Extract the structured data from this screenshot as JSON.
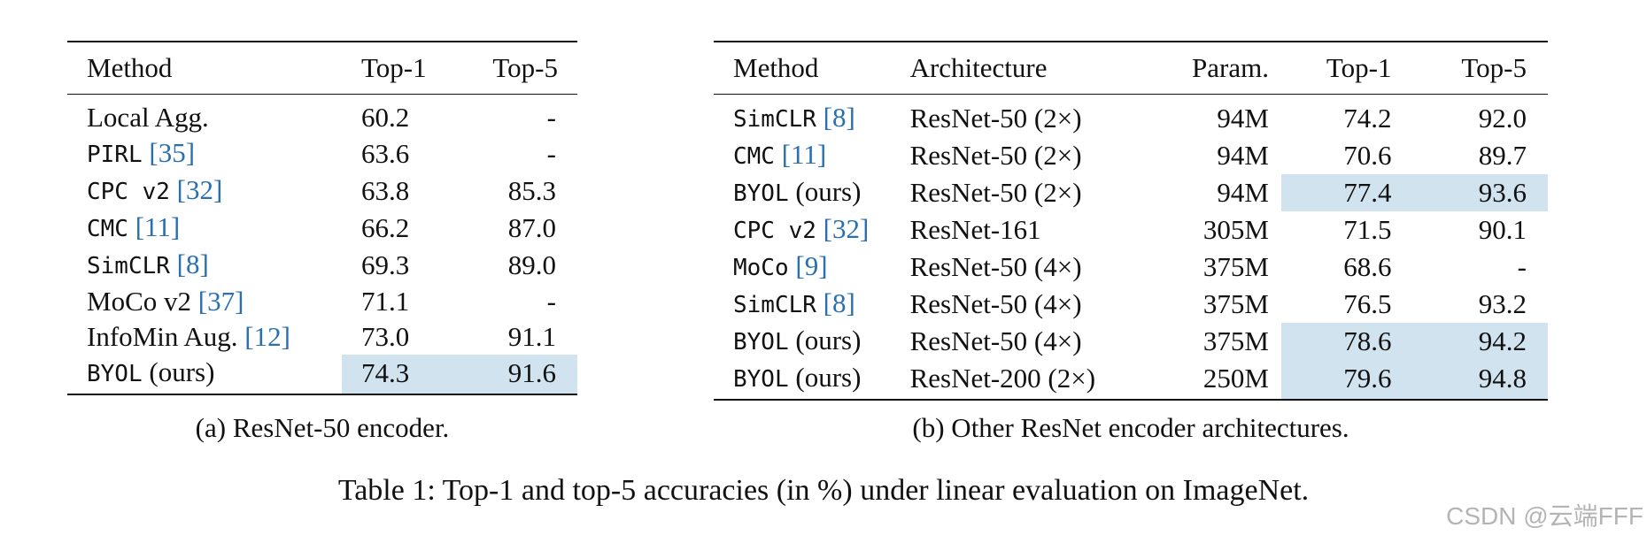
{
  "table_a": {
    "headers": [
      "Method",
      "Top-1",
      "Top-5"
    ],
    "rows": [
      {
        "method": "Local Agg.",
        "mono": false,
        "cite": "",
        "top1": "60.2",
        "top5": "-",
        "highlight": false,
        "bold": false
      },
      {
        "method": "PIRL",
        "mono": true,
        "cite": "[35]",
        "top1": "63.6",
        "top5": "-",
        "highlight": false,
        "bold": false
      },
      {
        "method": "CPC v2",
        "mono": true,
        "cite": "[32]",
        "top1": "63.8",
        "top5": "85.3",
        "highlight": false,
        "bold": false
      },
      {
        "method": "CMC",
        "mono": true,
        "cite": "[11]",
        "top1": "66.2",
        "top5": "87.0",
        "highlight": false,
        "bold": false
      },
      {
        "method": "SimCLR",
        "mono": true,
        "cite": "[8]",
        "top1": "69.3",
        "top5": "89.0",
        "highlight": false,
        "bold": false
      },
      {
        "method": "MoCo v2",
        "mono": false,
        "cite": "[37]",
        "top1": "71.1",
        "top5": "-",
        "highlight": false,
        "bold": false
      },
      {
        "method": "InfoMin Aug.",
        "mono": false,
        "cite": "[12]",
        "top1": "73.0",
        "top5": "91.1",
        "highlight": false,
        "bold": false
      },
      {
        "method": "BYOL",
        "mono": true,
        "cite": "(ours)",
        "top1": "74.3",
        "top5": "91.6",
        "highlight": true,
        "bold": true
      }
    ],
    "caption": "(a) ResNet-50 encoder."
  },
  "table_b": {
    "headers": [
      "Method",
      "Architecture",
      "Param.",
      "Top-1",
      "Top-5"
    ],
    "rows": [
      {
        "method": "SimCLR",
        "cite": "[8]",
        "arch": "ResNet-50 (2×)",
        "param": "94M",
        "top1": "74.2",
        "top5": "92.0",
        "highlight": false,
        "bold": false
      },
      {
        "method": "CMC",
        "cite": "[11]",
        "arch": "ResNet-50 (2×)",
        "param": "94M",
        "top1": "70.6",
        "top5": "89.7",
        "highlight": false,
        "bold": false
      },
      {
        "method": "BYOL",
        "cite": "(ours)",
        "arch": "ResNet-50 (2×)",
        "param": "94M",
        "top1": "77.4",
        "top5": "93.6",
        "highlight": true,
        "bold": false
      },
      {
        "method": "CPC v2",
        "cite": "[32]",
        "arch": "ResNet-161",
        "param": "305M",
        "top1": "71.5",
        "top5": "90.1",
        "highlight": false,
        "bold": false
      },
      {
        "method": "MoCo",
        "cite": "[9]",
        "arch": "ResNet-50 (4×)",
        "param": "375M",
        "top1": "68.6",
        "top5": "-",
        "highlight": false,
        "bold": false
      },
      {
        "method": "SimCLR",
        "cite": "[8]",
        "arch": "ResNet-50 (4×)",
        "param": "375M",
        "top1": "76.5",
        "top5": "93.2",
        "highlight": false,
        "bold": false
      },
      {
        "method": "BYOL",
        "cite": "(ours)",
        "arch": "ResNet-50 (4×)",
        "param": "375M",
        "top1": "78.6",
        "top5": "94.2",
        "highlight": true,
        "bold": false
      },
      {
        "method": "BYOL",
        "cite": "(ours)",
        "arch": "ResNet-200 (2×)",
        "param": "250M",
        "top1": "79.6",
        "top5": "94.8",
        "highlight": true,
        "bold": true
      }
    ],
    "caption": "(b) Other ResNet encoder architectures."
  },
  "main_caption": "Table 1: Top-1 and top-5 accuracies (in %) under linear evaluation on ImageNet.",
  "watermark": "CSDN @云端FFF",
  "colors": {
    "highlight": "#d1e3ee",
    "citation": "#2a6fb0"
  }
}
